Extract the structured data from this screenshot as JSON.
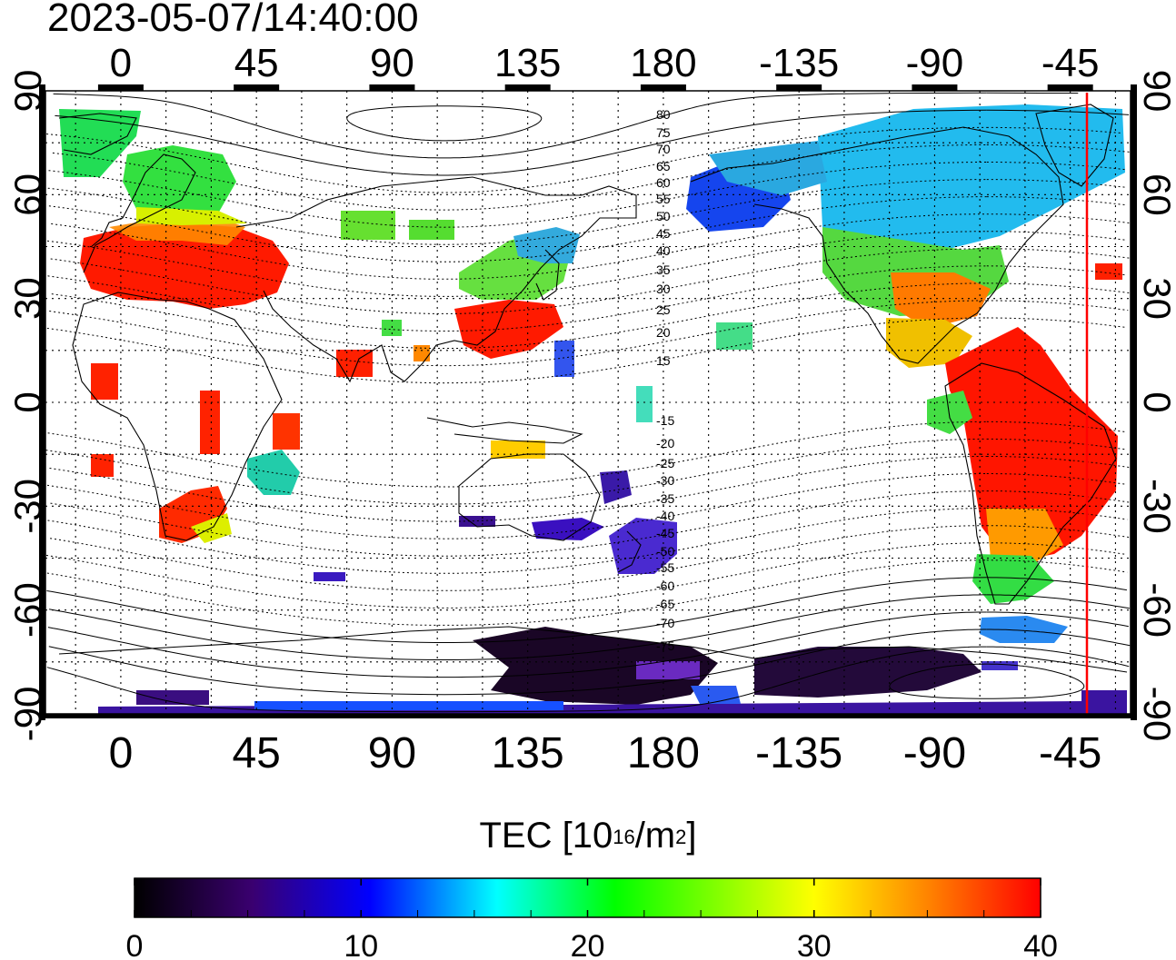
{
  "title": "2023-05-07/14:40:00",
  "map": {
    "top_lon_labels": [
      "0",
      "45",
      "90",
      "135",
      "180",
      "-135",
      "-90",
      "-45"
    ],
    "bottom_lon_labels": [
      "0",
      "45",
      "90",
      "135",
      "180",
      "-135",
      "-90",
      "-45"
    ],
    "lat_labels": [
      "90",
      "60",
      "30",
      "0",
      "-30",
      "-60",
      "-90"
    ],
    "lon_range": [
      -25,
      335
    ],
    "lat_range": [
      -90,
      90
    ],
    "grid": "dotted, 15 degree spacing",
    "magnetic_latitude_labels": [
      "80",
      "75",
      "70",
      "65",
      "60",
      "55",
      "50",
      "45",
      "40",
      "35",
      "30",
      "25",
      "20",
      "15",
      "-15",
      "-20",
      "-25",
      "-30",
      "-35",
      "-40",
      "-45",
      "-50",
      "-55",
      "-60",
      "-65",
      "-70",
      "-75"
    ],
    "terminator_longitude": -45,
    "terminator_color": "#ff0000"
  },
  "colorbar": {
    "label_main": "TEC  [10",
    "label_sup1": "16",
    "label_mid": "/m",
    "label_sup2": "2",
    "label_end": "]",
    "ticks": [
      "0",
      "10",
      "20",
      "30",
      "40"
    ],
    "range": [
      0,
      40
    ],
    "colors": [
      "#000000",
      "#3a0070",
      "#0000ff",
      "#00ffff",
      "#00ff00",
      "#ffff00",
      "#ff0000"
    ]
  }
}
